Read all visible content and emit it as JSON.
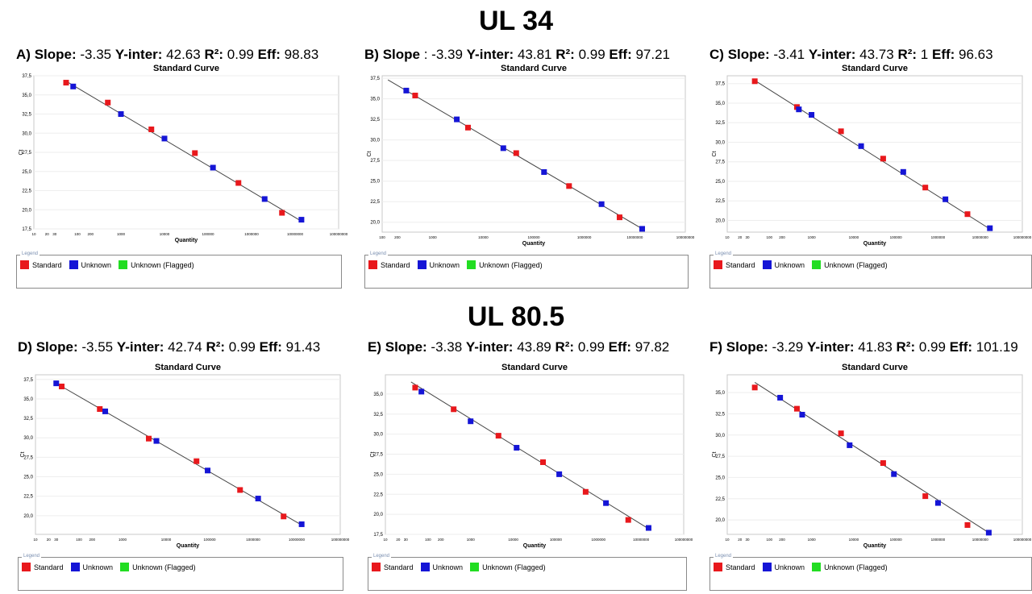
{
  "sections": [
    "UL 34",
    "UL 80.5"
  ],
  "legend": {
    "title": "Legend",
    "items": [
      {
        "label": "Standard",
        "color": "#e8181c"
      },
      {
        "label": "Unknown",
        "color": "#1515d6"
      },
      {
        "label": "Unknown (Flagged)",
        "color": "#22dd22"
      }
    ]
  },
  "panels": [
    {
      "letter": "A)",
      "slope_label": "Slope:",
      "slope": "-3.35",
      "yint_label": "Y-inter:",
      "yint": "42.63",
      "r2_label": "R²:",
      "r2": "0.99",
      "eff_label": "Eff:",
      "eff": "98.83"
    },
    {
      "letter": "B)",
      "slope_label": "Slope",
      "slope": ":  -3.39",
      "yint_label": "Y-inter:",
      "yint": "43.81",
      "r2_label": "R²:",
      "r2": "0.99",
      "eff_label": "Eff:",
      "eff": "97.21"
    },
    {
      "letter": "C)",
      "slope_label": "Slope:",
      "slope": "-3.41",
      "yint_label": "Y-inter:",
      "yint": "43.73",
      "r2_label": "R²:",
      "r2": "1",
      "eff_label": "Eff:",
      "eff": "96.63"
    },
    {
      "letter": "D)",
      "slope_label": "Slope:",
      "slope": "-3.55",
      "yint_label": "Y-inter:",
      "yint": "42.74",
      "r2_label": "R²:",
      "r2": "0.99",
      "eff_label": "Eff:",
      "eff": "91.43"
    },
    {
      "letter": "E)",
      "slope_label": "Slope:",
      "slope": "-3.38",
      "yint_label": "Y-inter:",
      "yint": "43.89",
      "r2_label": "R²:",
      "r2": "0.99",
      "eff_label": "Eff:",
      "eff": "97.82"
    },
    {
      "letter": "F)",
      "slope_label": "Slope:",
      "slope": "-3.29",
      "yint_label": "Y-inter:",
      "yint": "41.83",
      "r2_label": "R²:",
      "r2": "0.99",
      "eff_label": "Eff:",
      "eff": "101.19"
    }
  ],
  "chart_data": [
    {
      "type": "scatter",
      "title": "Standard Curve",
      "xlabel": "Quantity",
      "ylabel": "Ct",
      "xscale": "log",
      "xlim": [
        10,
        100000000
      ],
      "ylim": [
        17.5,
        37.5
      ],
      "x_ticks": [
        "10",
        "20",
        "30",
        "100",
        "200",
        "1000",
        "10000",
        "100000",
        "1000000",
        "10000000",
        "100000000"
      ],
      "y_ticks": [
        "17,5",
        "20,0",
        "22,5",
        "25,0",
        "27,5",
        "30,0",
        "32,5",
        "35,0",
        "37,5"
      ],
      "fit": {
        "x": [
          55,
          15000000
        ],
        "y": [
          36.8,
          18.4
        ]
      },
      "series": [
        {
          "name": "Standard",
          "color": "#e8181c",
          "x": [
            55,
            500,
            5000,
            50000,
            500000,
            5000000
          ],
          "y": [
            36.6,
            34.0,
            30.5,
            27.4,
            23.5,
            19.6
          ]
        },
        {
          "name": "Unknown",
          "color": "#1515d6",
          "x": [
            80,
            1000,
            10000,
            130000,
            2000000,
            14000000
          ],
          "y": [
            36.1,
            32.5,
            29.3,
            25.5,
            21.4,
            18.7
          ]
        }
      ]
    },
    {
      "type": "scatter",
      "title": "Standard Curve",
      "xlabel": "Quantity",
      "ylabel": "Ct",
      "xscale": "log",
      "xlim": [
        100,
        100000000
      ],
      "ylim": [
        18.8,
        37.8
      ],
      "x_ticks": [
        "100",
        "200",
        "1000",
        "10000",
        "100000",
        "1000000",
        "10000000",
        "100000000"
      ],
      "y_ticks": [
        "20,0",
        "22,5",
        "25,0",
        "27,5",
        "30,0",
        "32,5",
        "35,0",
        "37,5"
      ],
      "fit": {
        "x": [
          130,
          15000000
        ],
        "y": [
          37.3,
          19.1
        ]
      },
      "series": [
        {
          "name": "Standard",
          "color": "#e8181c",
          "x": [
            450,
            5000,
            45000,
            500000,
            5000000
          ],
          "y": [
            35.4,
            31.5,
            28.4,
            24.4,
            20.6
          ]
        },
        {
          "name": "Unknown",
          "color": "#1515d6",
          "x": [
            300,
            3000,
            25000,
            160000,
            2200000,
            14000000
          ],
          "y": [
            36.0,
            32.5,
            29.0,
            26.1,
            22.2,
            19.2
          ]
        }
      ]
    },
    {
      "type": "scatter",
      "title": "Standard Curve",
      "xlabel": "Quantity",
      "ylabel": "Ct",
      "xscale": "log",
      "xlim": [
        10,
        100000000
      ],
      "ylim": [
        18.5,
        38.5
      ],
      "x_ticks": [
        "10",
        "20",
        "30",
        "100",
        "200",
        "1000",
        "10000",
        "100000",
        "1000000",
        "10000000",
        "100000000"
      ],
      "y_ticks": [
        "20,0",
        "22,5",
        "25,0",
        "27,5",
        "30,0",
        "32,5",
        "35,0",
        "37,5"
      ],
      "fit": {
        "x": [
          45,
          17000000
        ],
        "y": [
          37.9,
          18.9
        ]
      },
      "series": [
        {
          "name": "Standard",
          "color": "#e8181c",
          "x": [
            45,
            450,
            5000,
            50000,
            500000,
            5000000
          ],
          "y": [
            37.8,
            34.5,
            31.4,
            27.9,
            24.2,
            20.8
          ]
        },
        {
          "name": "Unknown",
          "color": "#1515d6",
          "x": [
            500,
            1000,
            15000,
            150000,
            1500000,
            17000000
          ],
          "y": [
            34.2,
            33.5,
            29.5,
            26.2,
            22.7,
            19.0
          ]
        }
      ]
    },
    {
      "type": "scatter",
      "title": "Standard Curve",
      "xlabel": "Quantity",
      "ylabel": "Ct",
      "xscale": "log",
      "xlim": [
        10,
        100000000
      ],
      "ylim": [
        17.6,
        38.1
      ],
      "x_ticks": [
        "10",
        "20",
        "30",
        "100",
        "200",
        "1000",
        "10000",
        "100000",
        "1000000",
        "10000000",
        "100000000"
      ],
      "y_ticks": [
        "20,0",
        "22,5",
        "25,0",
        "27,5",
        "30,0",
        "32,5",
        "35,0",
        "37,5"
      ],
      "fit": {
        "x": [
          30,
          13000000
        ],
        "y": [
          37.0,
          18.8
        ]
      },
      "series": [
        {
          "name": "Standard",
          "color": "#e8181c",
          "x": [
            40,
            300,
            4000,
            50000,
            500000,
            5000000
          ],
          "y": [
            36.6,
            33.7,
            29.9,
            27.0,
            23.3,
            19.9
          ]
        },
        {
          "name": "Unknown",
          "color": "#1515d6",
          "x": [
            30,
            400,
            6000,
            90000,
            1300000,
            13000000
          ],
          "y": [
            37.0,
            33.4,
            29.6,
            25.8,
            22.2,
            18.9
          ]
        }
      ]
    },
    {
      "type": "scatter",
      "title": "Standard Curve",
      "xlabel": "Quantity",
      "ylabel": "Ct",
      "xscale": "log",
      "xlim": [
        10,
        100000000
      ],
      "ylim": [
        17.5,
        37.4
      ],
      "x_ticks": [
        "10",
        "20",
        "30",
        "100",
        "200",
        "1000",
        "10000",
        "100000",
        "1000000",
        "10000000",
        "100000000"
      ],
      "y_ticks": [
        "17,5",
        "20,0",
        "22,5",
        "25,0",
        "27,5",
        "30,0",
        "32,5",
        "35,0"
      ],
      "fit": {
        "x": [
          40,
          15000000
        ],
        "y": [
          36.5,
          18.2
        ]
      },
      "series": [
        {
          "name": "Standard",
          "color": "#e8181c",
          "x": [
            50,
            400,
            4500,
            50000,
            500000,
            5000000
          ],
          "y": [
            35.8,
            33.1,
            29.8,
            26.5,
            22.8,
            19.3
          ]
        },
        {
          "name": "Unknown",
          "color": "#1515d6",
          "x": [
            70,
            1000,
            12000,
            120000,
            1500000,
            15000000
          ],
          "y": [
            35.3,
            31.6,
            28.3,
            25.0,
            21.4,
            18.3
          ]
        }
      ]
    },
    {
      "type": "scatter",
      "title": "Standard Curve",
      "xlabel": "Quantity",
      "ylabel": "Ct",
      "xscale": "log",
      "xlim": [
        10,
        100000000
      ],
      "ylim": [
        18.3,
        37.1
      ],
      "x_ticks": [
        "10",
        "20",
        "30",
        "100",
        "200",
        "1000",
        "10000",
        "100000",
        "1000000",
        "10000000",
        "100000000"
      ],
      "y_ticks": [
        "20,0",
        "22,5",
        "25,0",
        "27,5",
        "30,0",
        "32,5",
        "35,0"
      ],
      "fit": {
        "x": [
          45,
          16000000
        ],
        "y": [
          36.2,
          18.5
        ]
      },
      "series": [
        {
          "name": "Standard",
          "color": "#e8181c",
          "x": [
            45,
            450,
            5000,
            50000,
            500000,
            5000000
          ],
          "y": [
            35.6,
            33.1,
            30.2,
            26.7,
            22.8,
            19.4
          ]
        },
        {
          "name": "Unknown",
          "color": "#1515d6",
          "x": [
            180,
            600,
            8000,
            90000,
            1000000,
            16000000
          ],
          "y": [
            34.4,
            32.4,
            28.8,
            25.4,
            22.0,
            18.5
          ]
        }
      ]
    }
  ]
}
